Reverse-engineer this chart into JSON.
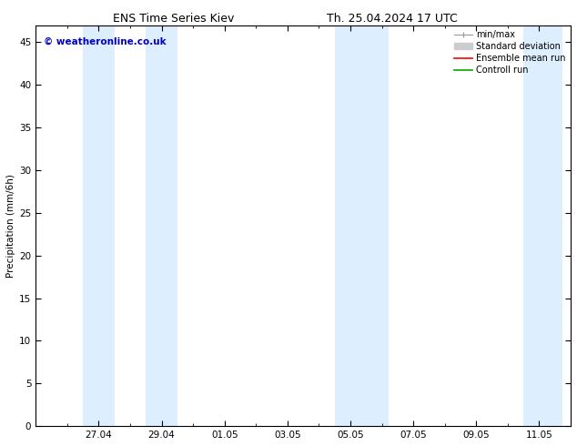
{
  "title_left": "ENS Time Series Kiev",
  "title_right": "Th. 25.04.2024 17 UTC",
  "ylabel": "Precipitation (mm/6h)",
  "watermark": "© weatheronline.co.uk",
  "watermark_color": "#0000cc",
  "ylim": [
    0,
    47
  ],
  "yticks": [
    0,
    5,
    10,
    15,
    20,
    25,
    30,
    35,
    40,
    45
  ],
  "xtick_labels": [
    "27.04",
    "29.04",
    "01.05",
    "03.05",
    "05.05",
    "07.05",
    "09.05",
    "11.05"
  ],
  "xtick_positions": [
    27,
    29,
    31,
    33,
    35,
    37,
    39,
    41
  ],
  "background_color": "#ffffff",
  "plot_bg_color": "#ffffff",
  "shaded_bands": [
    {
      "xstart": 26.5,
      "xend": 27.5
    },
    {
      "xstart": 28.5,
      "xend": 29.5
    },
    {
      "xstart": 34.5,
      "xend": 35.5
    },
    {
      "xstart": 35.5,
      "xend": 36.2
    },
    {
      "xstart": 40.5,
      "xend": 41.75
    }
  ],
  "band_color": "#ddeeff",
  "xmin": 25.3,
  "xmax": 41.75
}
